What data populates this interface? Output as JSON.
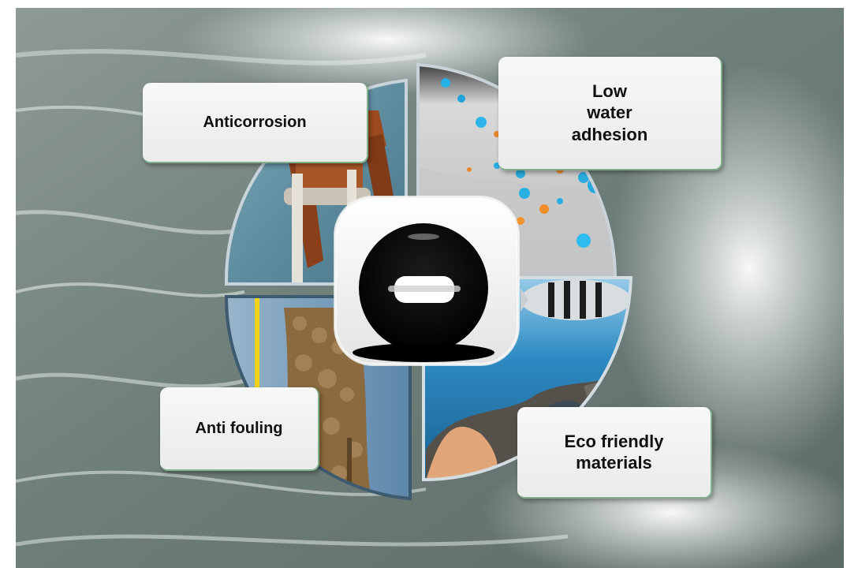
{
  "labels": {
    "anticorrosion": "Anticorrosion",
    "low_water_adhesion": "Low\nwater\nadhesion",
    "anti_fouling": "Anti fouling",
    "eco_friendly": "Eco friendly\nmaterials"
  },
  "colors": {
    "label_border": "#7fb08a",
    "rust": "#9a4a22",
    "water": "#2f7fb0",
    "droplet": "#0c0c0c"
  }
}
